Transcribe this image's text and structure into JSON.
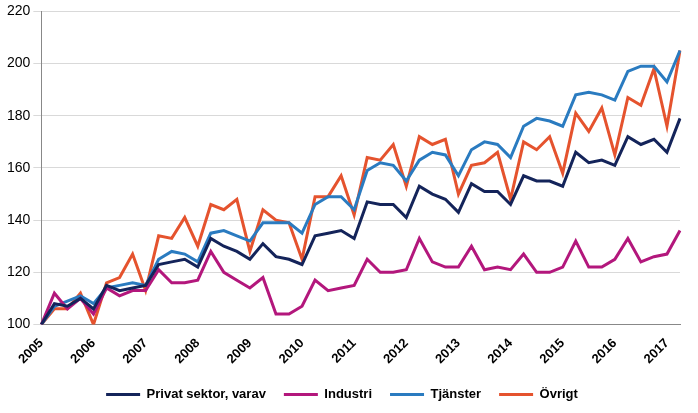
{
  "chart_data": {
    "type": "line",
    "categories": [
      "2005",
      null,
      null,
      null,
      "2006",
      null,
      null,
      null,
      "2007",
      null,
      null,
      null,
      "2008",
      null,
      null,
      null,
      "2009",
      null,
      null,
      null,
      "2010",
      null,
      null,
      null,
      "2011",
      null,
      null,
      null,
      "2012",
      null,
      null,
      null,
      "2013",
      null,
      null,
      null,
      "2014",
      null,
      null,
      null,
      "2015",
      null,
      null,
      null,
      "2016",
      null,
      null,
      null,
      "2017",
      null
    ],
    "series": [
      {
        "name": "Privat sektor, varav",
        "color": "#14245a",
        "values": [
          100,
          108,
          107,
          110,
          106,
          115,
          113,
          114,
          115,
          123,
          124,
          125,
          122,
          133,
          130,
          128,
          125,
          131,
          126,
          125,
          123,
          134,
          135,
          136,
          133,
          147,
          146,
          146,
          141,
          153,
          150,
          148,
          143,
          154,
          151,
          151,
          146,
          157,
          155,
          155,
          153,
          166,
          162,
          163,
          161,
          172,
          169,
          171,
          166,
          179
        ]
      },
      {
        "name": "Industri",
        "color": "#b3177c",
        "values": [
          100,
          112,
          106,
          110,
          104,
          114,
          111,
          113,
          113,
          121,
          116,
          116,
          117,
          128,
          120,
          117,
          114,
          118,
          104,
          104,
          107,
          117,
          113,
          114,
          115,
          125,
          120,
          120,
          121,
          133,
          124,
          122,
          122,
          130,
          121,
          122,
          121,
          127,
          120,
          120,
          122,
          132,
          122,
          122,
          125,
          133,
          124,
          126,
          127,
          136
        ]
      },
      {
        "name": "Tjänster",
        "color": "#2a7bc0",
        "values": [
          100,
          107,
          109,
          111,
          108,
          114,
          115,
          116,
          115,
          125,
          128,
          127,
          124,
          135,
          136,
          134,
          132,
          139,
          139,
          139,
          135,
          146,
          149,
          149,
          144,
          159,
          162,
          161,
          155,
          163,
          166,
          165,
          157,
          167,
          170,
          169,
          164,
          176,
          179,
          178,
          176,
          188,
          189,
          188,
          186,
          197,
          199,
          199,
          193,
          205
        ]
      },
      {
        "name": "Övrigt",
        "color": "#e5532e",
        "values": [
          100,
          106,
          106,
          112,
          100,
          116,
          118,
          127,
          113,
          134,
          133,
          141,
          130,
          146,
          144,
          148,
          128,
          144,
          140,
          139,
          125,
          149,
          149,
          157,
          142,
          164,
          163,
          169,
          153,
          172,
          169,
          171,
          150,
          161,
          162,
          166,
          148,
          170,
          167,
          172,
          158,
          181,
          174,
          183,
          165,
          187,
          184,
          198,
          176,
          205
        ]
      }
    ],
    "ylim": [
      100,
      220
    ],
    "yticks": [
      100,
      120,
      140,
      160,
      180,
      200,
      220
    ],
    "grid": true,
    "legend": "bottom"
  }
}
